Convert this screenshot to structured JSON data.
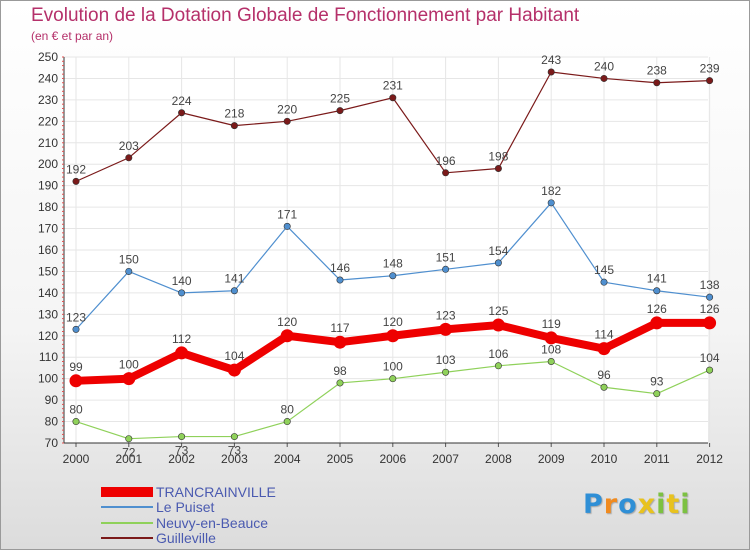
{
  "chart_data": {
    "type": "line",
    "title": "Evolution de la Dotation Globale de Fonctionnement par Habitant",
    "subtitle": "(en € et par an)",
    "x": [
      "2000",
      "2001",
      "2002",
      "2003",
      "2004",
      "2005",
      "2006",
      "2007",
      "2008",
      "2009",
      "2010",
      "2011",
      "2012"
    ],
    "ylim": [
      70,
      250
    ],
    "yticks": [
      70,
      80,
      90,
      100,
      110,
      120,
      130,
      140,
      150,
      160,
      170,
      180,
      190,
      200,
      210,
      220,
      230,
      240,
      250
    ],
    "grid": true,
    "legend_position": "bottom-left",
    "series": [
      {
        "name": "Guilleville",
        "color": "#7b1a1a",
        "values": [
          192,
          203,
          224,
          218,
          220,
          225,
          231,
          196,
          198,
          243,
          240,
          238,
          239
        ]
      },
      {
        "name": "Le Puiset",
        "color": "#4f8fcf",
        "values": [
          123,
          150,
          140,
          141,
          171,
          146,
          148,
          151,
          154,
          182,
          145,
          141,
          138
        ]
      },
      {
        "name": "Neuvy-en-Beauce",
        "color": "#8fd15a",
        "values": [
          80,
          72,
          73,
          73,
          80,
          98,
          100,
          103,
          106,
          108,
          96,
          93,
          104
        ]
      },
      {
        "name": "TRANCRAINVILLE",
        "color": "#ee0000",
        "values": [
          99,
          100,
          112,
          104,
          120,
          117,
          120,
          123,
          125,
          119,
          114,
          126,
          126
        ]
      }
    ],
    "legend": [
      "TRANCRAINVILLE",
      "Le Puiset",
      "Neuvy-en-Beauce",
      "Guilleville"
    ]
  },
  "logo": {
    "letters": [
      "P",
      "r",
      "o",
      "x",
      "i",
      "t",
      "i"
    ],
    "colors": [
      "#2f8fd6",
      "#f08a1e",
      "#2f8fd6",
      "#e8c21e",
      "#7cc142",
      "#e8c21e",
      "#7cc142"
    ]
  }
}
